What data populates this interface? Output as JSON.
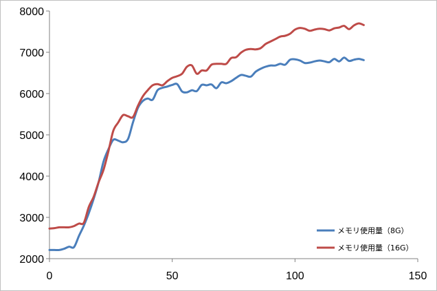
{
  "chart_data": {
    "type": "line",
    "title": "",
    "xlabel": "",
    "ylabel": "",
    "xlim": [
      0,
      150
    ],
    "ylim": [
      2000,
      8000
    ],
    "x_ticks": [
      0,
      50,
      100,
      150
    ],
    "y_ticks": [
      2000,
      3000,
      4000,
      5000,
      6000,
      7000,
      8000
    ],
    "x_tick_labels": [
      "0",
      "50",
      "100",
      "150"
    ],
    "y_tick_labels": [
      "2000",
      "3000",
      "4000",
      "5000",
      "6000",
      "7000",
      "8000"
    ],
    "grid": false,
    "legend_position": "bottom-right inside",
    "series": [
      {
        "name": "メモリ使用量（8G）",
        "color": "#4a7ebb",
        "x": [
          0,
          2,
          4,
          6,
          8,
          10,
          12,
          14,
          16,
          18,
          20,
          22,
          24,
          26,
          28,
          30,
          32,
          34,
          36,
          38,
          40,
          42,
          44,
          46,
          48,
          50,
          52,
          54,
          56,
          58,
          60,
          62,
          64,
          66,
          68,
          70,
          72,
          74,
          76,
          78,
          80,
          82,
          84,
          86,
          88,
          90,
          92,
          94,
          96,
          98,
          100,
          102,
          104,
          106,
          108,
          110,
          112,
          114,
          116,
          118,
          120,
          122,
          124,
          126,
          128
        ],
        "values": [
          2210,
          2210,
          2210,
          2240,
          2290,
          2280,
          2550,
          2800,
          3100,
          3450,
          3850,
          4350,
          4650,
          4880,
          4860,
          4820,
          4900,
          5300,
          5650,
          5820,
          5880,
          5850,
          6080,
          6140,
          6170,
          6210,
          6230,
          6050,
          6030,
          6080,
          6060,
          6210,
          6200,
          6220,
          6130,
          6270,
          6250,
          6300,
          6380,
          6450,
          6430,
          6410,
          6530,
          6600,
          6650,
          6680,
          6680,
          6720,
          6700,
          6820,
          6830,
          6800,
          6740,
          6750,
          6780,
          6800,
          6780,
          6760,
          6840,
          6780,
          6870,
          6790,
          6820,
          6840,
          6810
        ]
      },
      {
        "name": "メモリ使用量（16G）",
        "color": "#be4b48",
        "x": [
          0,
          2,
          4,
          6,
          8,
          10,
          12,
          14,
          16,
          18,
          20,
          22,
          24,
          26,
          28,
          30,
          32,
          34,
          36,
          38,
          40,
          42,
          44,
          46,
          48,
          50,
          52,
          54,
          56,
          58,
          60,
          62,
          64,
          66,
          68,
          70,
          72,
          74,
          76,
          78,
          80,
          82,
          84,
          86,
          88,
          90,
          92,
          94,
          96,
          98,
          100,
          102,
          104,
          106,
          108,
          110,
          112,
          114,
          116,
          118,
          120,
          122,
          124,
          126,
          128
        ],
        "values": [
          2730,
          2740,
          2760,
          2760,
          2760,
          2790,
          2850,
          2870,
          3250,
          3500,
          3850,
          4150,
          4600,
          5100,
          5300,
          5480,
          5450,
          5430,
          5700,
          5930,
          6080,
          6200,
          6230,
          6200,
          6300,
          6380,
          6420,
          6480,
          6650,
          6680,
          6480,
          6560,
          6560,
          6700,
          6720,
          6720,
          6720,
          6860,
          6880,
          6990,
          7060,
          7080,
          7070,
          7100,
          7200,
          7260,
          7320,
          7380,
          7400,
          7450,
          7550,
          7590,
          7570,
          7520,
          7550,
          7570,
          7560,
          7530,
          7580,
          7600,
          7640,
          7560,
          7650,
          7700,
          7660
        ]
      }
    ]
  }
}
